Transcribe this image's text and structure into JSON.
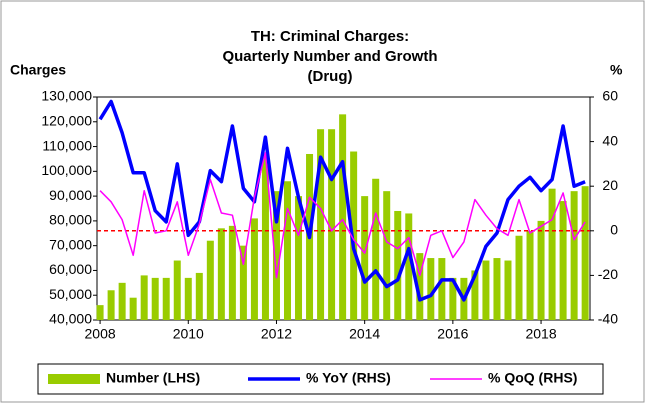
{
  "chart_data": {
    "type": "combo",
    "title": [
      "TH: Criminal Charges:",
      "Quarterly Number and Growth",
      "(Drug)"
    ],
    "ylabel": "Charges",
    "y2label": "%",
    "x": [
      2008,
      2008.25,
      2008.5,
      2008.75,
      2009,
      2009.25,
      2009.5,
      2009.75,
      2010,
      2010.25,
      2010.5,
      2010.75,
      2011,
      2011.25,
      2011.5,
      2011.75,
      2012,
      2012.25,
      2012.5,
      2012.75,
      2013,
      2013.25,
      2013.5,
      2013.75,
      2014,
      2014.25,
      2014.5,
      2014.75,
      2015,
      2015.25,
      2015.5,
      2015.75,
      2016,
      2016.25,
      2016.5,
      2016.75,
      2017,
      2017.25,
      2017.5,
      2017.75,
      2018,
      2018.25,
      2018.5,
      2018.75,
      2019
    ],
    "series": [
      {
        "name": "Number (LHS)",
        "type": "bar",
        "color": "#99cc00",
        "axis": "y",
        "values": [
          46000,
          52000,
          55000,
          49000,
          58000,
          57000,
          57000,
          64000,
          57000,
          59000,
          72000,
          77000,
          78000,
          70000,
          81000,
          107000,
          92000,
          96000,
          90000,
          107000,
          117000,
          117000,
          123000,
          108000,
          90000,
          97000,
          92000,
          84000,
          83000,
          67000,
          65000,
          65000,
          57000,
          57000,
          60000,
          64000,
          65000,
          64000,
          74000,
          76000,
          80000,
          93000,
          88000,
          92000,
          94000
        ]
      },
      {
        "name": "% YoY (RHS)",
        "type": "line",
        "color": "#0000ff",
        "width": 3.5,
        "axis": "y2",
        "values": [
          50,
          58,
          44,
          26,
          26,
          9,
          4,
          30,
          -2,
          4,
          27,
          22,
          47,
          19,
          13,
          42,
          4,
          37,
          15,
          -3,
          33,
          23,
          31,
          -8,
          -23,
          -18,
          -25,
          -22,
          -8,
          -31,
          -29,
          -22,
          -22,
          -31,
          -20,
          -7,
          -1,
          14,
          20,
          24,
          18,
          23,
          47,
          20,
          22
        ]
      },
      {
        "name": "% QoQ (RHS)",
        "type": "line",
        "color": "#ff00ff",
        "width": 1.5,
        "axis": "y2",
        "values": [
          18,
          13,
          5,
          -11,
          18,
          -1,
          0,
          13,
          -11,
          3,
          23,
          8,
          7,
          -15,
          15,
          35,
          -21,
          10,
          -2,
          15,
          10,
          0,
          5,
          -4,
          -10,
          8,
          -5,
          -8,
          -3,
          -20,
          -2,
          0,
          -12,
          -5,
          14,
          7,
          1,
          -2,
          14,
          -1,
          2,
          5,
          17,
          -4,
          4
        ]
      }
    ],
    "xlim": [
      2007.93,
      2019.11
    ],
    "xticks": [
      2008,
      2010,
      2012,
      2014,
      2016,
      2018
    ],
    "ylim": [
      40000,
      130000
    ],
    "yticks": [
      {
        "value": 40000,
        "label": "40,000"
      },
      {
        "value": 50000,
        "label": "50,000"
      },
      {
        "value": 60000,
        "label": "60,000"
      },
      {
        "value": 70000,
        "label": "70,000"
      },
      {
        "value": 80000,
        "label": "80,000"
      },
      {
        "value": 90000,
        "label": "90,000"
      },
      {
        "value": 100000,
        "label": "100,000"
      },
      {
        "value": 110000,
        "label": "110,000"
      },
      {
        "value": 120000,
        "label": "120,000"
      },
      {
        "value": 130000,
        "label": "130,000"
      }
    ],
    "y2lim": [
      -40,
      60
    ],
    "y2ticks": [
      -40,
      -20,
      0,
      20,
      40,
      60
    ],
    "reference_line": {
      "value": 0,
      "axis": "y2",
      "color": "#ff0000"
    },
    "legend": "bottom"
  }
}
